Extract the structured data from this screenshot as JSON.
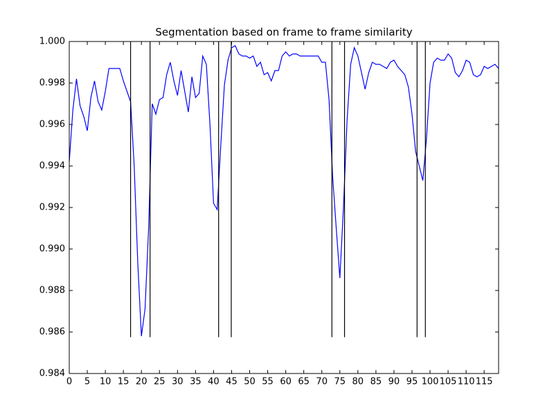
{
  "chart_data": {
    "type": "line",
    "title": "Segmentation based on frame to frame similarity",
    "x": [
      0,
      1,
      2,
      3,
      4,
      5,
      6,
      7,
      8,
      9,
      10,
      11,
      12,
      13,
      14,
      15,
      16,
      17,
      18,
      19,
      20,
      21,
      22,
      23,
      24,
      25,
      26,
      27,
      28,
      29,
      30,
      31,
      32,
      33,
      34,
      35,
      36,
      37,
      38,
      39,
      40,
      41,
      42,
      43,
      44,
      45,
      46,
      47,
      48,
      49,
      50,
      51,
      52,
      53,
      54,
      55,
      56,
      57,
      58,
      59,
      60,
      61,
      62,
      63,
      64,
      65,
      66,
      67,
      68,
      69,
      70,
      71,
      72,
      73,
      74,
      75,
      76,
      77,
      78,
      79,
      80,
      81,
      82,
      83,
      84,
      85,
      86,
      87,
      88,
      89,
      90,
      91,
      92,
      93,
      94,
      95,
      96,
      97,
      98,
      99,
      100,
      101,
      102,
      103,
      104,
      105,
      106,
      107,
      108,
      109,
      110,
      111,
      112,
      113,
      114,
      115,
      116,
      117,
      118,
      119
    ],
    "series": [
      {
        "color": "#0000ff",
        "values": [
          0.9942,
          0.9967,
          0.9982,
          0.9969,
          0.9964,
          0.9957,
          0.9973,
          0.9981,
          0.9971,
          0.9967,
          0.9976,
          0.9987,
          0.9987,
          0.9987,
          0.9987,
          0.9981,
          0.9976,
          0.9971,
          0.994,
          0.9893,
          0.9858,
          0.9871,
          0.991,
          0.997,
          0.9965,
          0.9972,
          0.9973,
          0.9984,
          0.999,
          0.9981,
          0.9974,
          0.9986,
          0.9976,
          0.9966,
          0.9983,
          0.9973,
          0.9975,
          0.9993,
          0.9989,
          0.996,
          0.9922,
          0.9919,
          0.995,
          0.9979,
          0.9991,
          0.9997,
          0.9998,
          0.9994,
          0.9993,
          0.9993,
          0.9992,
          0.9993,
          0.9988,
          0.999,
          0.9984,
          0.9985,
          0.9981,
          0.9986,
          0.9986,
          0.9993,
          0.9995,
          0.9993,
          0.9994,
          0.9994,
          0.9993,
          0.9993,
          0.9993,
          0.9993,
          0.9993,
          0.9993,
          0.999,
          0.999,
          0.9972,
          0.9935,
          0.991,
          0.9886,
          0.992,
          0.9962,
          0.9989,
          0.9997,
          0.9993,
          0.9985,
          0.9977,
          0.9985,
          0.999,
          0.9989,
          0.9989,
          0.9988,
          0.9987,
          0.999,
          0.9991,
          0.9988,
          0.9986,
          0.9984,
          0.9978,
          0.9965,
          0.9947,
          0.994,
          0.9933,
          0.9953,
          0.998,
          0.999,
          0.9992,
          0.9991,
          0.9991,
          0.9994,
          0.9992,
          0.9985,
          0.9983,
          0.9986,
          0.9991,
          0.999,
          0.9984,
          0.9983,
          0.9984,
          0.9988,
          0.9987,
          0.9988,
          0.9989,
          0.9987
        ]
      }
    ],
    "vlines": [
      17,
      22.4,
      41.4,
      44.9,
      72.8,
      76.3,
      96.4,
      98.7
    ],
    "vline_bottom": 0.98575,
    "vline_color": "#000000",
    "xlim": [
      0,
      119
    ],
    "xticks": [
      0,
      5,
      10,
      15,
      20,
      25,
      30,
      35,
      40,
      45,
      50,
      55,
      60,
      65,
      70,
      75,
      80,
      85,
      90,
      95,
      100,
      105,
      110,
      115
    ],
    "ylim": [
      0.984,
      1.0
    ],
    "yticks": [
      0.984,
      0.986,
      0.988,
      {
        "value": 0.99,
        "label": "0.990"
      },
      0.992,
      0.994,
      0.996,
      0.998,
      {
        "value": 1.0,
        "label": "1.000"
      }
    ],
    "grid": false
  }
}
